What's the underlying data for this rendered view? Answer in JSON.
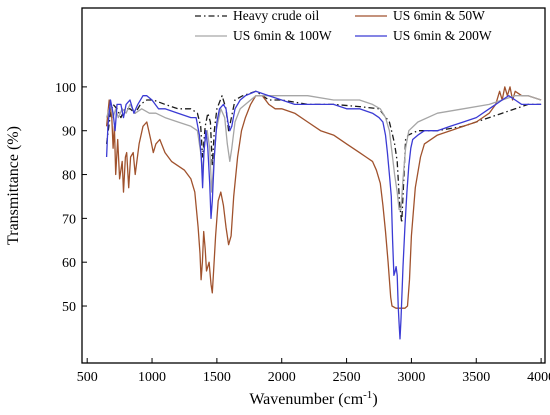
{
  "chart_data": {
    "type": "line",
    "xlabel_main": "Wavenumber (cm",
    "xlabel_sup": "-1",
    "xlabel_end": ")",
    "ylabel": "Transmittance (%)",
    "xlim": [
      460,
      4030
    ],
    "ylim": [
      37,
      118
    ],
    "xticks": [
      500,
      1000,
      1500,
      2000,
      2500,
      3000,
      3500,
      4000
    ],
    "yticks": [
      50,
      60,
      70,
      80,
      90,
      100
    ],
    "grid": false,
    "legend_position": "top",
    "series": [
      {
        "name": "Heavy crude oil",
        "color": "#1a1a1a",
        "dash": "dashdot",
        "points": [
          [
            650,
            87
          ],
          [
            680,
            94
          ],
          [
            700,
            96
          ],
          [
            730,
            95
          ],
          [
            760,
            93
          ],
          [
            790,
            95
          ],
          [
            830,
            95
          ],
          [
            870,
            94
          ],
          [
            910,
            96
          ],
          [
            960,
            97
          ],
          [
            1010,
            97
          ],
          [
            1100,
            96
          ],
          [
            1200,
            95
          ],
          [
            1300,
            95
          ],
          [
            1350,
            94
          ],
          [
            1375,
            91
          ],
          [
            1390,
            84
          ],
          [
            1410,
            91
          ],
          [
            1430,
            94
          ],
          [
            1450,
            92
          ],
          [
            1465,
            82
          ],
          [
            1480,
            90
          ],
          [
            1500,
            95
          ],
          [
            1540,
            98
          ],
          [
            1570,
            95
          ],
          [
            1590,
            90
          ],
          [
            1605,
            92
          ],
          [
            1640,
            97
          ],
          [
            1700,
            98
          ],
          [
            1800,
            99
          ],
          [
            1900,
            97
          ],
          [
            2000,
            97
          ],
          [
            2200,
            96
          ],
          [
            2400,
            96
          ],
          [
            2600,
            95.5
          ],
          [
            2750,
            95
          ],
          [
            2830,
            92
          ],
          [
            2855,
            89
          ],
          [
            2870,
            87
          ],
          [
            2890,
            83
          ],
          [
            2910,
            73
          ],
          [
            2925,
            69
          ],
          [
            2940,
            78
          ],
          [
            2955,
            88
          ],
          [
            2975,
            89
          ],
          [
            3050,
            90
          ],
          [
            3200,
            90
          ],
          [
            3400,
            91
          ],
          [
            3600,
            93
          ],
          [
            3700,
            94
          ],
          [
            3800,
            95
          ],
          [
            3900,
            96
          ],
          [
            4000,
            96
          ]
        ]
      },
      {
        "name": "US 6min & 50W",
        "color": "#a0522d",
        "dash": "solid",
        "points": [
          [
            650,
            91
          ],
          [
            670,
            97
          ],
          [
            690,
            93
          ],
          [
            700,
            86
          ],
          [
            710,
            91
          ],
          [
            720,
            80
          ],
          [
            735,
            88
          ],
          [
            750,
            79
          ],
          [
            770,
            83
          ],
          [
            780,
            76
          ],
          [
            795,
            84
          ],
          [
            805,
            85
          ],
          [
            820,
            77
          ],
          [
            835,
            84
          ],
          [
            855,
            85
          ],
          [
            870,
            80
          ],
          [
            900,
            87
          ],
          [
            930,
            91
          ],
          [
            960,
            92
          ],
          [
            990,
            88
          ],
          [
            1010,
            85
          ],
          [
            1030,
            87
          ],
          [
            1060,
            88
          ],
          [
            1100,
            85
          ],
          [
            1150,
            83
          ],
          [
            1200,
            82
          ],
          [
            1250,
            81
          ],
          [
            1300,
            79
          ],
          [
            1330,
            76
          ],
          [
            1355,
            68
          ],
          [
            1370,
            62
          ],
          [
            1378,
            56
          ],
          [
            1388,
            60
          ],
          [
            1398,
            67
          ],
          [
            1410,
            63
          ],
          [
            1420,
            58
          ],
          [
            1440,
            60
          ],
          [
            1455,
            55
          ],
          [
            1465,
            53
          ],
          [
            1475,
            58
          ],
          [
            1490,
            66
          ],
          [
            1510,
            74
          ],
          [
            1530,
            76
          ],
          [
            1550,
            73
          ],
          [
            1570,
            68
          ],
          [
            1590,
            64
          ],
          [
            1610,
            66
          ],
          [
            1630,
            75
          ],
          [
            1660,
            84
          ],
          [
            1690,
            90
          ],
          [
            1720,
            93
          ],
          [
            1760,
            96
          ],
          [
            1800,
            98
          ],
          [
            1850,
            98
          ],
          [
            1900,
            96
          ],
          [
            1950,
            95
          ],
          [
            2000,
            95
          ],
          [
            2100,
            94
          ],
          [
            2200,
            92
          ],
          [
            2300,
            90
          ],
          [
            2400,
            89
          ],
          [
            2500,
            87
          ],
          [
            2600,
            85
          ],
          [
            2650,
            84
          ],
          [
            2700,
            83
          ],
          [
            2730,
            81
          ],
          [
            2760,
            78
          ],
          [
            2780,
            73
          ],
          [
            2800,
            67
          ],
          [
            2820,
            60
          ],
          [
            2840,
            52
          ],
          [
            2850,
            50
          ],
          [
            2880,
            49.5
          ],
          [
            2900,
            49.5
          ],
          [
            2950,
            49.5
          ],
          [
            2970,
            50
          ],
          [
            2985,
            56
          ],
          [
            3000,
            66
          ],
          [
            3030,
            77
          ],
          [
            3070,
            84
          ],
          [
            3100,
            87
          ],
          [
            3200,
            89
          ],
          [
            3300,
            90
          ],
          [
            3400,
            91
          ],
          [
            3500,
            92
          ],
          [
            3550,
            93
          ],
          [
            3600,
            94
          ],
          [
            3650,
            96
          ],
          [
            3680,
            99
          ],
          [
            3700,
            97
          ],
          [
            3720,
            100
          ],
          [
            3740,
            98
          ],
          [
            3760,
            100
          ],
          [
            3780,
            97
          ],
          [
            3800,
            99
          ],
          [
            3850,
            98
          ],
          [
            3900,
            98
          ],
          [
            4000,
            97
          ]
        ]
      },
      {
        "name": "US 6min & 100W",
        "color": "#a6a6a6",
        "dash": "solid",
        "points": [
          [
            650,
            93
          ],
          [
            680,
            96
          ],
          [
            700,
            93
          ],
          [
            720,
            95
          ],
          [
            740,
            93
          ],
          [
            770,
            95
          ],
          [
            800,
            94
          ],
          [
            830,
            96
          ],
          [
            870,
            94
          ],
          [
            920,
            95
          ],
          [
            980,
            94
          ],
          [
            1030,
            94
          ],
          [
            1100,
            93
          ],
          [
            1200,
            92
          ],
          [
            1300,
            91
          ],
          [
            1350,
            90
          ],
          [
            1375,
            85
          ],
          [
            1390,
            80
          ],
          [
            1405,
            87
          ],
          [
            1425,
            90
          ],
          [
            1445,
            86
          ],
          [
            1460,
            76
          ],
          [
            1475,
            82
          ],
          [
            1495,
            90
          ],
          [
            1530,
            95
          ],
          [
            1560,
            93
          ],
          [
            1580,
            87
          ],
          [
            1600,
            83
          ],
          [
            1615,
            86
          ],
          [
            1640,
            92
          ],
          [
            1680,
            95
          ],
          [
            1720,
            96
          ],
          [
            1800,
            98
          ],
          [
            1900,
            98
          ],
          [
            2000,
            98
          ],
          [
            2200,
            98
          ],
          [
            2400,
            97
          ],
          [
            2600,
            97
          ],
          [
            2700,
            96
          ],
          [
            2760,
            95
          ],
          [
            2800,
            93
          ],
          [
            2830,
            90
          ],
          [
            2850,
            85
          ],
          [
            2870,
            80
          ],
          [
            2890,
            76
          ],
          [
            2905,
            72
          ],
          [
            2920,
            72
          ],
          [
            2935,
            79
          ],
          [
            2955,
            86
          ],
          [
            2980,
            90
          ],
          [
            3050,
            92
          ],
          [
            3200,
            94
          ],
          [
            3400,
            95
          ],
          [
            3600,
            96
          ],
          [
            3700,
            97
          ],
          [
            3800,
            98
          ],
          [
            3900,
            98
          ],
          [
            4000,
            97
          ]
        ]
      },
      {
        "name": "US 6min & 200W",
        "color": "#3b3bd4",
        "dash": "solid",
        "points": [
          [
            650,
            84
          ],
          [
            660,
            91
          ],
          [
            680,
            97
          ],
          [
            700,
            94
          ],
          [
            715,
            90
          ],
          [
            730,
            96
          ],
          [
            760,
            96
          ],
          [
            780,
            93
          ],
          [
            800,
            96
          ],
          [
            830,
            97
          ],
          [
            860,
            94
          ],
          [
            890,
            96
          ],
          [
            930,
            98
          ],
          [
            960,
            98
          ],
          [
            1000,
            97
          ],
          [
            1050,
            95
          ],
          [
            1100,
            95
          ],
          [
            1200,
            94
          ],
          [
            1300,
            93
          ],
          [
            1340,
            93
          ],
          [
            1365,
            89
          ],
          [
            1380,
            84
          ],
          [
            1390,
            77
          ],
          [
            1400,
            85
          ],
          [
            1415,
            90
          ],
          [
            1430,
            86
          ],
          [
            1445,
            78
          ],
          [
            1455,
            70
          ],
          [
            1465,
            74
          ],
          [
            1480,
            84
          ],
          [
            1500,
            92
          ],
          [
            1520,
            95
          ],
          [
            1550,
            96
          ],
          [
            1570,
            95
          ],
          [
            1585,
            92
          ],
          [
            1600,
            90
          ],
          [
            1615,
            91
          ],
          [
            1640,
            95
          ],
          [
            1680,
            97
          ],
          [
            1720,
            98
          ],
          [
            1800,
            99
          ],
          [
            1900,
            98
          ],
          [
            2000,
            97
          ],
          [
            2100,
            96
          ],
          [
            2200,
            96
          ],
          [
            2300,
            96
          ],
          [
            2400,
            96
          ],
          [
            2500,
            95
          ],
          [
            2600,
            95
          ],
          [
            2700,
            94
          ],
          [
            2750,
            93
          ],
          [
            2780,
            92
          ],
          [
            2800,
            89
          ],
          [
            2815,
            85
          ],
          [
            2830,
            80
          ],
          [
            2845,
            75
          ],
          [
            2855,
            65
          ],
          [
            2865,
            57
          ],
          [
            2875,
            58
          ],
          [
            2882,
            59
          ],
          [
            2890,
            57
          ],
          [
            2898,
            50
          ],
          [
            2905,
            46
          ],
          [
            2912,
            42.5
          ],
          [
            2920,
            47
          ],
          [
            2935,
            59
          ],
          [
            2950,
            68
          ],
          [
            2965,
            76
          ],
          [
            2980,
            82
          ],
          [
            2995,
            86
          ],
          [
            3010,
            88
          ],
          [
            3050,
            89
          ],
          [
            3100,
            90
          ],
          [
            3200,
            90
          ],
          [
            3300,
            91
          ],
          [
            3400,
            92
          ],
          [
            3500,
            93
          ],
          [
            3600,
            95
          ],
          [
            3650,
            96
          ],
          [
            3700,
            97
          ],
          [
            3750,
            98
          ],
          [
            3800,
            97
          ],
          [
            3850,
            96
          ],
          [
            3900,
            96
          ],
          [
            4000,
            96
          ]
        ]
      }
    ]
  }
}
